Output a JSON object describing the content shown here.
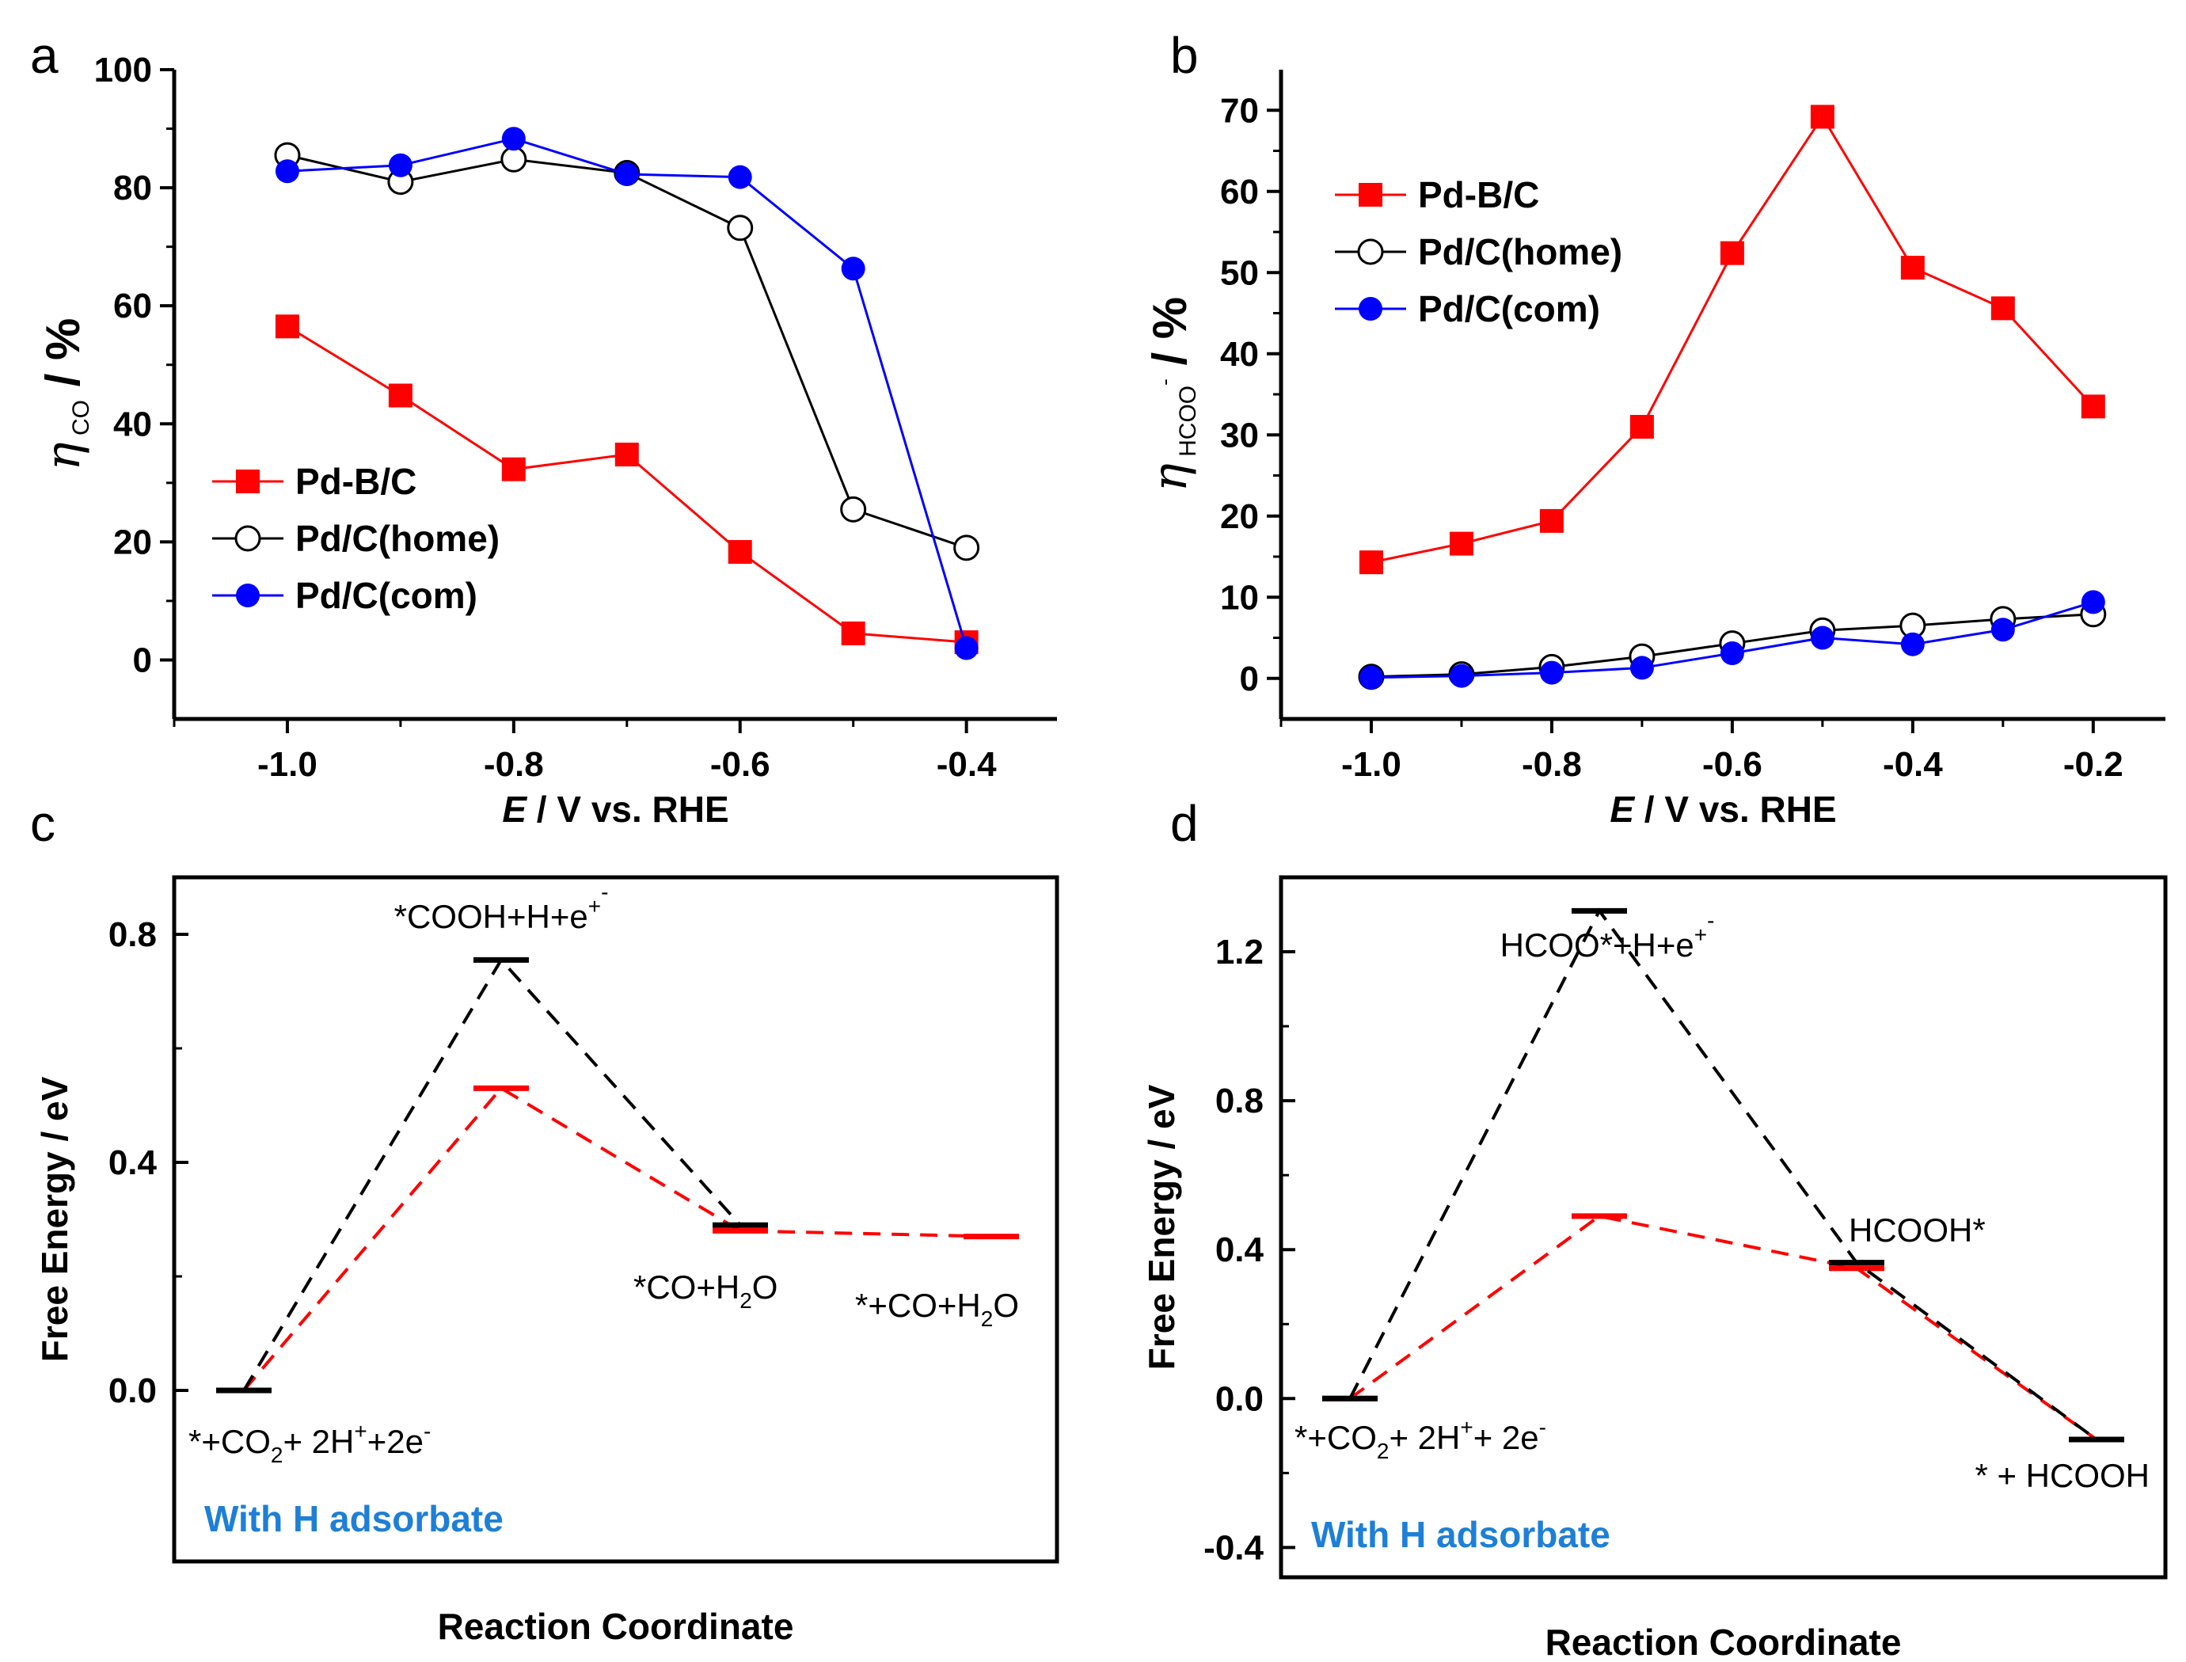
{
  "colors": {
    "red": "#ff0000",
    "black": "#000000",
    "blue": "#0000ff",
    "note": "#1e7fd6"
  },
  "chart_data": [
    {
      "panel": "a",
      "type": "line",
      "xlabel_italic": "E",
      "xlabel_rest": " / V vs. RHE",
      "ylabel_symbol": "η",
      "ylabel_sub": "CO",
      "ylabel_rest": " / %",
      "xlim": [
        -1.1,
        -0.32
      ],
      "ylim": [
        -10,
        100
      ],
      "xticks": [
        -1.0,
        -0.8,
        -0.6,
        -0.4
      ],
      "xtick_labels": [
        "-1.0",
        "-0.8",
        "-0.6",
        "-0.4"
      ],
      "yticks": [
        0,
        20,
        40,
        60,
        80,
        100
      ],
      "ytick_labels": [
        "0",
        "20",
        "40",
        "60",
        "80",
        "100"
      ],
      "legend_position": "bottom-left",
      "series": [
        {
          "name": "Pd-B/C",
          "marker": "square",
          "color": "red",
          "x": [
            -1.0,
            -0.9,
            -0.8,
            -0.7,
            -0.6,
            -0.5,
            -0.4
          ],
          "y": [
            56.5,
            44.8,
            32.3,
            34.8,
            18.3,
            4.5,
            3.0
          ]
        },
        {
          "name": "Pd/C(home)",
          "marker": "open-circle",
          "color": "black",
          "x": [
            -1.0,
            -0.9,
            -0.8,
            -0.7,
            -0.6,
            -0.5,
            -0.4
          ],
          "y": [
            85.5,
            81.0,
            84.8,
            82.5,
            73.2,
            25.5,
            19.0
          ]
        },
        {
          "name": "Pd/C(com)",
          "marker": "filled-circle",
          "color": "blue",
          "x": [
            -1.0,
            -0.9,
            -0.8,
            -0.7,
            -0.6,
            -0.5,
            -0.4
          ],
          "y": [
            82.8,
            83.8,
            88.3,
            82.3,
            81.8,
            66.3,
            2.0
          ]
        }
      ]
    },
    {
      "panel": "b",
      "type": "line",
      "xlabel_italic": "E",
      "xlabel_rest": " / V vs. RHE",
      "ylabel_symbol": "η",
      "ylabel_sub": "HCOO",
      "ylabel_sup": "-",
      "ylabel_rest": " / %",
      "xlim": [
        -1.1,
        -0.12
      ],
      "ylim": [
        -5,
        75
      ],
      "xticks": [
        -1.0,
        -0.8,
        -0.6,
        -0.4,
        -0.2
      ],
      "xtick_labels": [
        "-1.0",
        "-0.8",
        "-0.6",
        "-0.4",
        "-0.2"
      ],
      "yticks": [
        0,
        10,
        20,
        30,
        40,
        50,
        60,
        70
      ],
      "ytick_labels": [
        "0",
        "10",
        "20",
        "30",
        "40",
        "50",
        "60",
        "70"
      ],
      "legend_position": "top-left",
      "series": [
        {
          "name": "Pd-B/C",
          "marker": "square",
          "color": "red",
          "x": [
            -1.0,
            -0.9,
            -0.8,
            -0.7,
            -0.6,
            -0.5,
            -0.4,
            -0.3,
            -0.2
          ],
          "y": [
            14.3,
            16.6,
            19.4,
            31.0,
            52.4,
            69.2,
            50.6,
            45.6,
            33.5
          ]
        },
        {
          "name": "Pd/C(home)",
          "marker": "open-circle",
          "color": "black",
          "x": [
            -1.0,
            -0.9,
            -0.8,
            -0.7,
            -0.6,
            -0.5,
            -0.4,
            -0.3,
            -0.2
          ],
          "y": [
            0.2,
            0.5,
            1.4,
            2.7,
            4.3,
            5.9,
            6.5,
            7.3,
            7.9
          ]
        },
        {
          "name": "Pd/C(com)",
          "marker": "filled-circle",
          "color": "blue",
          "x": [
            -1.0,
            -0.9,
            -0.8,
            -0.7,
            -0.6,
            -0.5,
            -0.4,
            -0.3,
            -0.2
          ],
          "y": [
            0.1,
            0.3,
            0.7,
            1.3,
            3.1,
            5.0,
            4.2,
            6.0,
            9.4
          ]
        }
      ]
    },
    {
      "panel": "c",
      "type": "energy-profile",
      "xlabel": "Reaction Coordinate",
      "ylabel": "Free Energy / eV",
      "ylim": [
        -0.3,
        0.9
      ],
      "yticks": [
        0.0,
        0.4,
        0.8
      ],
      "ytick_labels": [
        "0.0",
        "0.4",
        "0.8"
      ],
      "note": "With H adsorbate",
      "series": [
        {
          "name": "black",
          "color": "black",
          "steps": [
            0,
            1,
            2
          ],
          "energies": [
            0.0,
            0.755,
            0.29
          ]
        },
        {
          "name": "red",
          "color": "red",
          "steps": [
            0,
            1,
            2,
            3
          ],
          "energies": [
            0.0,
            0.53,
            0.28,
            0.27
          ]
        }
      ],
      "state_labels": [
        {
          "base": "*+CO",
          "sub": "2",
          "tail": "+ 2H",
          "sup": "+",
          "tail2": "+2e",
          "sup2": "-"
        },
        {
          "base": "*COOH+H",
          "sup": "+",
          "tail": "+e",
          "sup2": "-"
        },
        {
          "base": "*CO+H",
          "sub": "2",
          "tail": "O"
        },
        {
          "base": "*+CO+H",
          "sub": "2",
          "tail": "O"
        }
      ]
    },
    {
      "panel": "d",
      "type": "energy-profile",
      "xlabel": "Reaction Coordinate",
      "ylabel": "Free Energy / eV",
      "ylim": [
        -0.48,
        1.4
      ],
      "yticks": [
        -0.4,
        0.0,
        0.4,
        0.8,
        1.2
      ],
      "ytick_labels": [
        "-0.4",
        "0.0",
        "0.4",
        "0.8",
        "1.2"
      ],
      "note": "With H adsorbate",
      "series": [
        {
          "name": "black",
          "color": "black",
          "steps": [
            0,
            1,
            2,
            3
          ],
          "energies": [
            0.0,
            1.31,
            0.365,
            -0.11
          ]
        },
        {
          "name": "red",
          "color": "red",
          "steps": [
            0,
            1,
            2,
            3
          ],
          "energies": [
            0.0,
            0.49,
            0.35,
            -0.11
          ]
        }
      ],
      "state_labels": [
        {
          "base": "*+CO",
          "sub": "2",
          "tail": "+ 2H",
          "sup": "+",
          "tail2": "+ 2e",
          "sup2": "-"
        },
        {
          "base": "HCOO*+H",
          "sup": "+",
          "tail": "+e",
          "sup2": "-"
        },
        {
          "base": "HCOOH*"
        },
        {
          "base": "* + HCOOH"
        }
      ]
    }
  ]
}
